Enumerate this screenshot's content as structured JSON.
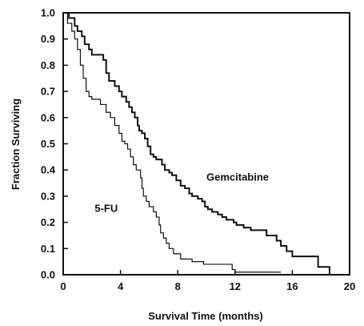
{
  "chart_data": {
    "type": "line",
    "title": "",
    "xlabel": "Survival Time (months)",
    "ylabel": "Fraction Surviving",
    "xlim": [
      0,
      20
    ],
    "ylim": [
      0,
      1.0
    ],
    "xticks": [
      0,
      4,
      8,
      12,
      16,
      20
    ],
    "yticks": [
      0.0,
      0.1,
      0.2,
      0.3,
      0.4,
      0.5,
      0.6,
      0.7,
      0.8,
      0.9,
      1.0
    ],
    "xtick_labels": [
      "0",
      "4",
      "8",
      "12",
      "16",
      "20"
    ],
    "ytick_labels": [
      "0.0",
      "0.1",
      "0.2",
      "0.3",
      "0.4",
      "0.5",
      "0.6",
      "0.7",
      "0.8",
      "0.9",
      "1.0"
    ],
    "grid": false,
    "legend": "none",
    "series": [
      {
        "name": "Gemcitabine",
        "color": "#111111",
        "step": true,
        "points": [
          [
            0,
            1.0
          ],
          [
            0.4,
            0.98
          ],
          [
            0.8,
            0.95
          ],
          [
            1.0,
            0.93
          ],
          [
            1.3,
            0.91
          ],
          [
            1.5,
            0.88
          ],
          [
            1.8,
            0.86
          ],
          [
            2.0,
            0.84
          ],
          [
            2.8,
            0.82
          ],
          [
            3.0,
            0.77
          ],
          [
            3.2,
            0.74
          ],
          [
            3.6,
            0.72
          ],
          [
            3.9,
            0.7
          ],
          [
            4.1,
            0.68
          ],
          [
            4.4,
            0.66
          ],
          [
            4.6,
            0.64
          ],
          [
            4.8,
            0.62
          ],
          [
            5.0,
            0.6
          ],
          [
            5.2,
            0.57
          ],
          [
            5.3,
            0.55
          ],
          [
            5.5,
            0.54
          ],
          [
            5.7,
            0.52
          ],
          [
            5.9,
            0.49
          ],
          [
            6.1,
            0.46
          ],
          [
            6.3,
            0.45
          ],
          [
            6.5,
            0.44
          ],
          [
            6.9,
            0.42
          ],
          [
            7.1,
            0.4
          ],
          [
            7.4,
            0.39
          ],
          [
            7.6,
            0.38
          ],
          [
            7.9,
            0.36
          ],
          [
            8.2,
            0.34
          ],
          [
            8.5,
            0.33
          ],
          [
            8.8,
            0.31
          ],
          [
            9.0,
            0.3
          ],
          [
            9.4,
            0.29
          ],
          [
            9.7,
            0.28
          ],
          [
            9.9,
            0.26
          ],
          [
            10.1,
            0.25
          ],
          [
            10.4,
            0.24
          ],
          [
            10.8,
            0.23
          ],
          [
            11.1,
            0.22
          ],
          [
            11.4,
            0.21
          ],
          [
            11.9,
            0.2
          ],
          [
            12.1,
            0.19
          ],
          [
            12.6,
            0.18
          ],
          [
            13.1,
            0.17
          ],
          [
            14.2,
            0.15
          ],
          [
            14.9,
            0.13
          ],
          [
            15.2,
            0.11
          ],
          [
            15.6,
            0.09
          ],
          [
            16.0,
            0.07
          ],
          [
            17.8,
            0.03
          ],
          [
            18.6,
            0.0
          ]
        ]
      },
      {
        "name": "5-FU",
        "color": "#111111",
        "step": true,
        "points": [
          [
            0,
            1.0
          ],
          [
            0.3,
            0.96
          ],
          [
            0.6,
            0.93
          ],
          [
            0.8,
            0.9
          ],
          [
            1.0,
            0.86
          ],
          [
            1.2,
            0.8
          ],
          [
            1.4,
            0.75
          ],
          [
            1.6,
            0.7
          ],
          [
            1.8,
            0.68
          ],
          [
            2.0,
            0.67
          ],
          [
            2.6,
            0.65
          ],
          [
            3.0,
            0.62
          ],
          [
            3.3,
            0.6
          ],
          [
            3.6,
            0.57
          ],
          [
            3.9,
            0.54
          ],
          [
            4.1,
            0.51
          ],
          [
            4.3,
            0.5
          ],
          [
            4.5,
            0.48
          ],
          [
            4.7,
            0.45
          ],
          [
            4.9,
            0.42
          ],
          [
            5.1,
            0.4
          ],
          [
            5.4,
            0.37
          ],
          [
            5.5,
            0.33
          ],
          [
            5.6,
            0.3
          ],
          [
            5.8,
            0.28
          ],
          [
            6.0,
            0.26
          ],
          [
            6.3,
            0.24
          ],
          [
            6.5,
            0.22
          ],
          [
            6.7,
            0.19
          ],
          [
            6.8,
            0.16
          ],
          [
            7.0,
            0.14
          ],
          [
            7.2,
            0.12
          ],
          [
            7.4,
            0.1
          ],
          [
            7.7,
            0.08
          ],
          [
            8.2,
            0.06
          ],
          [
            9.0,
            0.05
          ],
          [
            9.8,
            0.04
          ],
          [
            11.8,
            0.02
          ],
          [
            12.0,
            0.01
          ],
          [
            15.2,
            0.01
          ]
        ]
      }
    ],
    "annotations": [
      {
        "text": "Gemcitabine",
        "x": 10.0,
        "y": 0.36
      },
      {
        "text": "5-FU",
        "x": 2.2,
        "y": 0.24
      }
    ]
  }
}
